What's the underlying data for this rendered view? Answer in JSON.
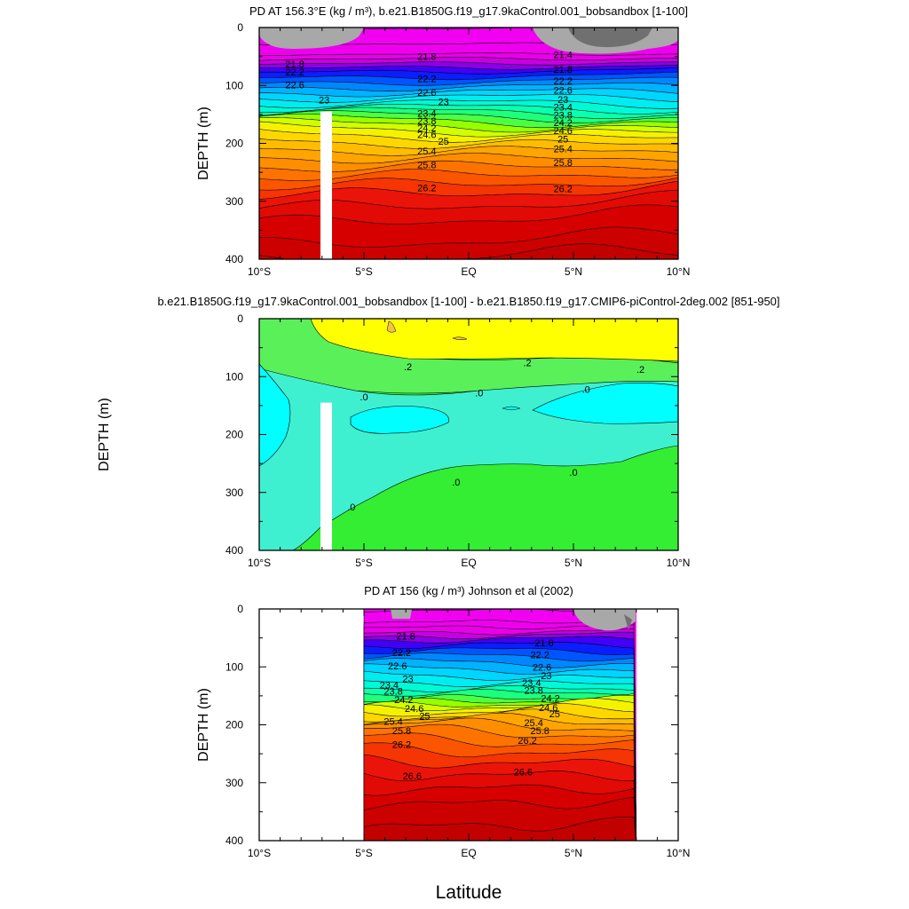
{
  "figure": {
    "xlabel": "Latitude"
  },
  "chart_data": [
    {
      "type": "heatmap",
      "title": "PD AT 156.3°E (kg / m³), b.e21.B1850G.f19_g17.9kaControl.001_bobsandbox [1-100]",
      "ylabel": "DEPTH (m)",
      "x_ticks": [
        "10°S",
        "5°S",
        "EQ",
        "5°N",
        "10°N"
      ],
      "x_tick_values": [
        -10,
        -5,
        0,
        5,
        10
      ],
      "y_ticks": [
        "0",
        "100",
        "200",
        "300",
        "400"
      ],
      "y_tick_values": [
        0,
        100,
        200,
        300,
        400
      ],
      "xlim": [
        -10,
        10
      ],
      "ylim": [
        0,
        400
      ],
      "y_inverted": true,
      "contour_levels": [
        21.0,
        21.2,
        21.4,
        21.6,
        21.8,
        22.0,
        22.2,
        22.4,
        22.6,
        22.8,
        23.0,
        23.2,
        23.4,
        23.6,
        23.8,
        24.0,
        24.2,
        24.4,
        24.6,
        24.8,
        25.0,
        25.2,
        25.4,
        25.6,
        25.8,
        26.0,
        26.2,
        26.4,
        26.6
      ],
      "profile_depth": [
        0,
        40,
        60,
        75,
        85,
        95,
        110,
        125,
        140,
        150,
        160,
        170,
        180,
        190,
        200,
        225,
        255,
        290,
        330,
        370,
        400
      ],
      "profile_value": [
        21.0,
        21.3,
        21.8,
        22.2,
        22.4,
        22.6,
        22.9,
        23.2,
        23.5,
        23.8,
        24.1,
        24.4,
        24.7,
        24.9,
        25.1,
        25.5,
        25.9,
        26.3,
        26.6,
        26.8,
        26.95
      ],
      "labels": [
        {
          "text": "21.8",
          "lat": -8.3,
          "depth": 63
        },
        {
          "text": "22.2",
          "lat": -8.3,
          "depth": 77
        },
        {
          "text": "22.6",
          "lat": -8.3,
          "depth": 99
        },
        {
          "text": "23",
          "lat": -6.9,
          "depth": 125
        },
        {
          "text": "21.8",
          "lat": -2.0,
          "depth": 50
        },
        {
          "text": "22.2",
          "lat": -2.0,
          "depth": 88
        },
        {
          "text": "22.6",
          "lat": -2.0,
          "depth": 112
        },
        {
          "text": "23",
          "lat": -1.2,
          "depth": 128
        },
        {
          "text": "23.4",
          "lat": -2.0,
          "depth": 148
        },
        {
          "text": "23.8",
          "lat": -2.0,
          "depth": 161
        },
        {
          "text": "24.2",
          "lat": -2.0,
          "depth": 173
        },
        {
          "text": "24.6",
          "lat": -2.0,
          "depth": 185
        },
        {
          "text": "25",
          "lat": -1.2,
          "depth": 196
        },
        {
          "text": "25.4",
          "lat": -2.0,
          "depth": 213
        },
        {
          "text": "25.8",
          "lat": -2.0,
          "depth": 237
        },
        {
          "text": "26.2",
          "lat": -2.0,
          "depth": 277
        },
        {
          "text": "21.4",
          "lat": 4.5,
          "depth": 47
        },
        {
          "text": "21.8",
          "lat": 4.5,
          "depth": 72
        },
        {
          "text": "22.2",
          "lat": 4.5,
          "depth": 92
        },
        {
          "text": "22.6",
          "lat": 4.5,
          "depth": 108
        },
        {
          "text": "23",
          "lat": 4.5,
          "depth": 124
        },
        {
          "text": "23.4",
          "lat": 4.5,
          "depth": 137
        },
        {
          "text": "23.8",
          "lat": 4.5,
          "depth": 151
        },
        {
          "text": "24.2",
          "lat": 4.5,
          "depth": 164
        },
        {
          "text": "24.6",
          "lat": 4.5,
          "depth": 178
        },
        {
          "text": "25",
          "lat": 4.5,
          "depth": 192
        },
        {
          "text": "25.4",
          "lat": 4.5,
          "depth": 209
        },
        {
          "text": "25.8",
          "lat": 4.5,
          "depth": 233
        },
        {
          "text": "26.2",
          "lat": 4.5,
          "depth": 278
        }
      ]
    },
    {
      "type": "heatmap",
      "title": "b.e21.B1850G.f19_g17.9kaControl.001_bobsandbox [1-100] - b.e21.B1850.f19_g17.CMIP6-piControl-2deg.002 [851-950]",
      "ylabel": "DEPTH (m)",
      "x_ticks": [
        "10°S",
        "5°S",
        "EQ",
        "5°N",
        "10°N"
      ],
      "x_tick_values": [
        -10,
        -5,
        0,
        5,
        10
      ],
      "y_ticks": [
        "0",
        "100",
        "200",
        "300",
        "400"
      ],
      "y_tick_values": [
        0,
        100,
        200,
        300,
        400
      ],
      "xlim": [
        -10,
        10
      ],
      "ylim": [
        0,
        400
      ],
      "y_inverted": true,
      "colors": {
        "yellow": "#ffff00",
        "light_green": "#5af05a",
        "green": "#33ee33",
        "aqua": "#3ff0d0",
        "cyan": "#00ffff",
        "orange_spot": "#f2c24a"
      },
      "labels": [
        {
          "text": ".2",
          "lat": -2.9,
          "depth": 83
        },
        {
          "text": ".2",
          "lat": 2.8,
          "depth": 76
        },
        {
          "text": ".2",
          "lat": 8.2,
          "depth": 87
        },
        {
          "text": ".0",
          "lat": -5.0,
          "depth": 135
        },
        {
          "text": ".0",
          "lat": 0.5,
          "depth": 128
        },
        {
          "text": ".0",
          "lat": 5.6,
          "depth": 122
        },
        {
          "text": ".0",
          "lat": -0.6,
          "depth": 282
        },
        {
          "text": ".0",
          "lat": 5.0,
          "depth": 265
        },
        {
          "text": ".0",
          "lat": -5.6,
          "depth": 325
        }
      ]
    },
    {
      "type": "heatmap",
      "title": "PD AT 156 (kg / m³) Johnson et al (2002)",
      "ylabel": "DEPTH (m)",
      "x_ticks": [
        "10°S",
        "5°S",
        "EQ",
        "5°N",
        "10°N"
      ],
      "x_tick_values": [
        -10,
        -5,
        0,
        5,
        10
      ],
      "y_ticks": [
        "0",
        "100",
        "200",
        "300",
        "400"
      ],
      "y_tick_values": [
        0,
        100,
        200,
        300,
        400
      ],
      "xlim": [
        -10,
        10
      ],
      "ylim": [
        0,
        400
      ],
      "data_xlim": [
        -5,
        8
      ],
      "y_inverted": true,
      "contour_levels": [
        21.0,
        21.2,
        21.4,
        21.6,
        21.8,
        22.0,
        22.2,
        22.4,
        22.6,
        22.8,
        23.0,
        23.2,
        23.4,
        23.6,
        23.8,
        24.0,
        24.2,
        24.4,
        24.6,
        24.8,
        25.0,
        25.2,
        25.4,
        25.6,
        25.8,
        26.0,
        26.2,
        26.4,
        26.6
      ],
      "profile_depth": [
        0,
        20,
        40,
        55,
        70,
        85,
        100,
        115,
        130,
        140,
        150,
        160,
        170,
        180,
        190,
        200,
        215,
        235,
        260,
        290,
        330,
        370,
        400
      ],
      "profile_value": [
        21.0,
        21.2,
        21.6,
        22.0,
        22.3,
        22.6,
        22.9,
        23.2,
        23.5,
        23.8,
        24.0,
        24.3,
        24.6,
        24.8,
        25.0,
        25.3,
        25.6,
        25.9,
        26.2,
        26.5,
        26.8,
        27.0,
        27.1
      ],
      "labels": [
        {
          "text": "21.8",
          "lat": -3.0,
          "depth": 47
        },
        {
          "text": "22.2",
          "lat": -3.2,
          "depth": 75
        },
        {
          "text": "22.6",
          "lat": -3.4,
          "depth": 98
        },
        {
          "text": "23",
          "lat": -2.9,
          "depth": 120
        },
        {
          "text": "23.4",
          "lat": -3.8,
          "depth": 131
        },
        {
          "text": "23.8",
          "lat": -3.6,
          "depth": 142
        },
        {
          "text": "24.2",
          "lat": -3.1,
          "depth": 156
        },
        {
          "text": "24.6",
          "lat": -2.6,
          "depth": 172
        },
        {
          "text": "25",
          "lat": -2.1,
          "depth": 185
        },
        {
          "text": "25.4",
          "lat": -3.6,
          "depth": 194
        },
        {
          "text": "25.8",
          "lat": -3.2,
          "depth": 210
        },
        {
          "text": "26.2",
          "lat": -3.2,
          "depth": 234
        },
        {
          "text": "26.6",
          "lat": -2.7,
          "depth": 288
        },
        {
          "text": "21.8",
          "lat": 3.6,
          "depth": 58
        },
        {
          "text": "22.2",
          "lat": 3.4,
          "depth": 79
        },
        {
          "text": "22.6",
          "lat": 3.5,
          "depth": 100
        },
        {
          "text": "23",
          "lat": 3.7,
          "depth": 115
        },
        {
          "text": "23.4",
          "lat": 3.0,
          "depth": 127
        },
        {
          "text": "23.8",
          "lat": 3.1,
          "depth": 140
        },
        {
          "text": "24.2",
          "lat": 3.9,
          "depth": 154
        },
        {
          "text": "24.6",
          "lat": 3.8,
          "depth": 170
        },
        {
          "text": "25",
          "lat": 4.1,
          "depth": 181
        },
        {
          "text": "25.4",
          "lat": 3.1,
          "depth": 196
        },
        {
          "text": "25.8",
          "lat": 3.4,
          "depth": 210
        },
        {
          "text": "26.2",
          "lat": 2.8,
          "depth": 227
        },
        {
          "text": "26.6",
          "lat": 2.6,
          "depth": 281
        }
      ]
    }
  ]
}
